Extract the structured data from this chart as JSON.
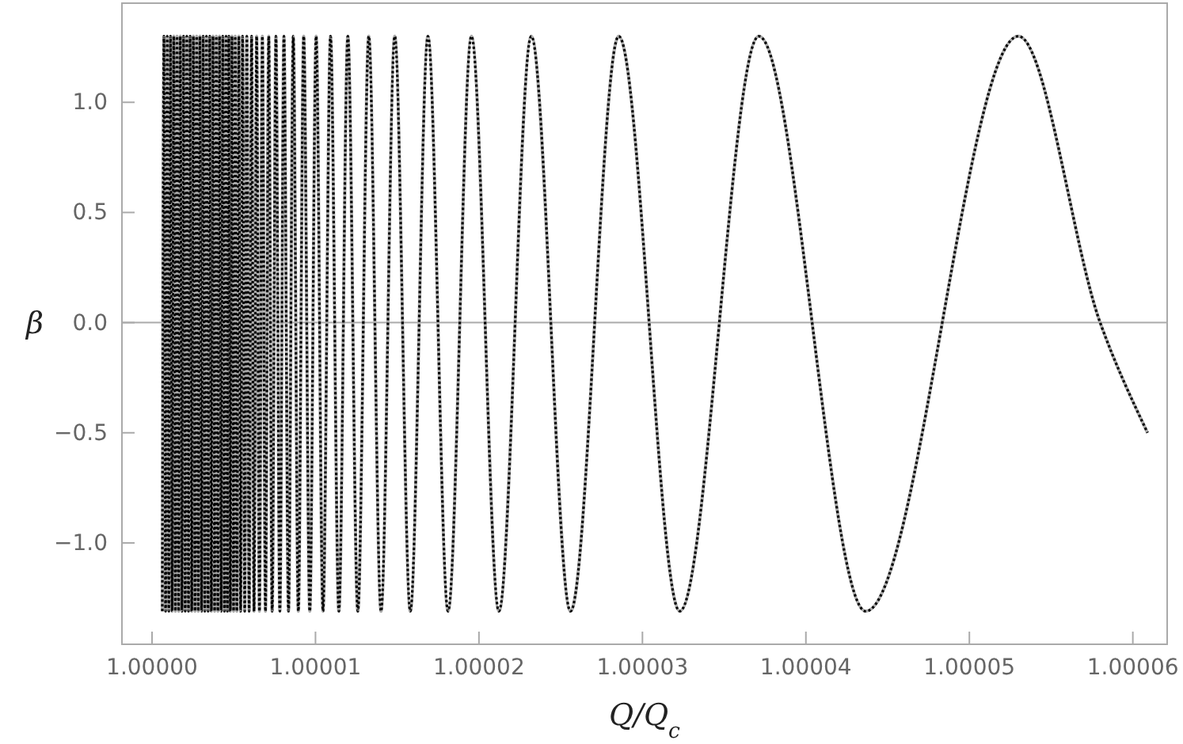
{
  "chart_data": {
    "type": "line",
    "xlabel": "Q/Q$_{c}$",
    "ylabel": "β",
    "x": [
      1.00000063,
      1.00000073,
      1.00000083,
      1.00000093,
      1.00000103,
      1.00000113,
      1.00000123,
      1.00000133,
      1.00000143,
      1.00000153,
      1.00000163,
      1.00000173,
      1.00000183,
      1.00000193,
      1.00000203,
      1.00000213,
      1.00000223,
      1.00000233,
      1.00000243,
      1.00000253,
      1.00000263,
      1.00000273,
      1.00000283,
      1.00000293,
      1.00000303,
      1.00000313,
      1.00000323,
      1.00000333,
      1.00000343,
      1.00000353,
      1.00000363,
      1.00000373,
      1.00000383,
      1.00000393,
      1.00000403,
      1.00000413,
      1.00000423,
      1.00000433,
      1.00000443,
      1.00000453,
      1.00000461,
      1.0000047,
      1.00000479,
      1.00000489,
      1.00000499,
      1.00000509,
      1.00000519,
      1.00000531,
      1.00000542,
      1.00000554,
      1.00000567,
      1.0000058,
      1.00000594,
      1.00000609,
      1.00000624,
      1.0000064,
      1.00000657,
      1.00000675,
      1.00000694,
      1.00000714,
      1.00000735,
      1.00000758,
      1.00000782,
      1.00000807,
      1.00000835,
      1.00000864,
      1.00000895,
      1.00000928,
      1.00000965,
      1.00001004,
      1.00001046,
      1.00001092,
      1.00001143,
      1.00001198,
      1.00001259,
      1.00001326,
      1.00001401,
      1.00001485,
      1.0000158,
      1.00001688,
      1.00001811,
      1.00001954,
      1.00002122,
      1.0000232,
      1.0000256,
      1.00002855,
      1.00003228,
      1.00003712,
      1.00004366,
      1.000053,
      1.000058,
      1.0000609
    ],
    "series": [
      {
        "color": "#aaaaaa",
        "line_style": "solid",
        "values": [
          -1.31,
          1.3,
          -1.31,
          1.3,
          -1.31,
          1.3,
          -1.31,
          1.3,
          -1.31,
          1.3,
          -1.31,
          1.3,
          -1.31,
          1.3,
          -1.31,
          1.3,
          -1.31,
          1.3,
          -1.31,
          1.3,
          -1.31,
          1.3,
          -1.31,
          1.3,
          -1.31,
          1.3,
          -1.31,
          1.3,
          -1.31,
          1.3,
          -1.31,
          1.3,
          -1.31,
          1.3,
          -1.31,
          1.3,
          -1.31,
          1.3,
          -1.31,
          1.3,
          -1.31,
          1.3,
          -1.31,
          1.3,
          -1.31,
          1.3,
          -1.31,
          1.3,
          -1.31,
          1.3,
          -1.31,
          1.3,
          -1.31,
          1.3,
          -1.31,
          1.3,
          -1.31,
          1.3,
          -1.31,
          1.3,
          -1.31,
          1.3,
          -1.31,
          1.3,
          -1.31,
          1.3,
          -1.31,
          1.3,
          -1.31,
          1.3,
          -1.31,
          1.3,
          -1.31,
          1.3,
          -1.31,
          1.3,
          -1.31,
          1.3,
          -1.31,
          1.3,
          -1.31,
          1.3,
          -1.31,
          1.3,
          -1.31,
          1.3,
          -1.31,
          1.3,
          -1.31,
          1.3,
          0,
          -0.5
        ]
      },
      {
        "color": "#000000",
        "line_style": "dotted",
        "values": [
          -1.31,
          1.3,
          -1.31,
          1.3,
          -1.31,
          1.3,
          -1.31,
          1.3,
          -1.31,
          1.3,
          -1.31,
          1.3,
          -1.31,
          1.3,
          -1.31,
          1.3,
          -1.31,
          1.3,
          -1.31,
          1.3,
          -1.31,
          1.3,
          -1.31,
          1.3,
          -1.31,
          1.3,
          -1.31,
          1.3,
          -1.31,
          1.3,
          -1.31,
          1.3,
          -1.31,
          1.3,
          -1.31,
          1.3,
          -1.31,
          1.3,
          -1.31,
          1.3,
          -1.31,
          1.3,
          -1.31,
          1.3,
          -1.31,
          1.3,
          -1.31,
          1.3,
          -1.31,
          1.3,
          -1.31,
          1.3,
          -1.31,
          1.3,
          -1.31,
          1.3,
          -1.31,
          1.3,
          -1.31,
          1.3,
          -1.31,
          1.3,
          -1.31,
          1.3,
          -1.31,
          1.3,
          -1.31,
          1.3,
          -1.31,
          1.3,
          -1.31,
          1.3,
          -1.31,
          1.3,
          -1.31,
          1.3,
          -1.31,
          1.3,
          -1.31,
          1.3,
          -1.31,
          1.3,
          -1.31,
          1.3,
          -1.31,
          1.3,
          -1.31,
          1.3,
          -1.31,
          1.3,
          0,
          -0.5
        ]
      }
    ],
    "xlim": [
      0.99999816,
      1.0000621
    ],
    "ylim": [
      -1.46,
      1.45
    ],
    "xticks": [
      {
        "value": 1,
        "label": "1.00000"
      },
      {
        "value": 1.00001,
        "label": "1.00001"
      },
      {
        "value": 1.00002,
        "label": "1.00002"
      },
      {
        "value": 1.00003,
        "label": "1.00003"
      },
      {
        "value": 1.00004,
        "label": "1.00004"
      },
      {
        "value": 1.00005,
        "label": "1.00005"
      },
      {
        "value": 1.00006,
        "label": "1.00006"
      }
    ],
    "yticks": [
      {
        "value": -1,
        "label": "−1.0"
      },
      {
        "value": -0.5,
        "label": "−0.5"
      },
      {
        "value": 0,
        "label": "0.0"
      },
      {
        "value": 0.5,
        "label": "0.5"
      },
      {
        "value": 1,
        "label": "1.0"
      }
    ],
    "ref_lines": [
      {
        "axis": "y",
        "value": 0,
        "color": "#aaaaaa"
      }
    ],
    "grid": false,
    "marker": "none"
  }
}
